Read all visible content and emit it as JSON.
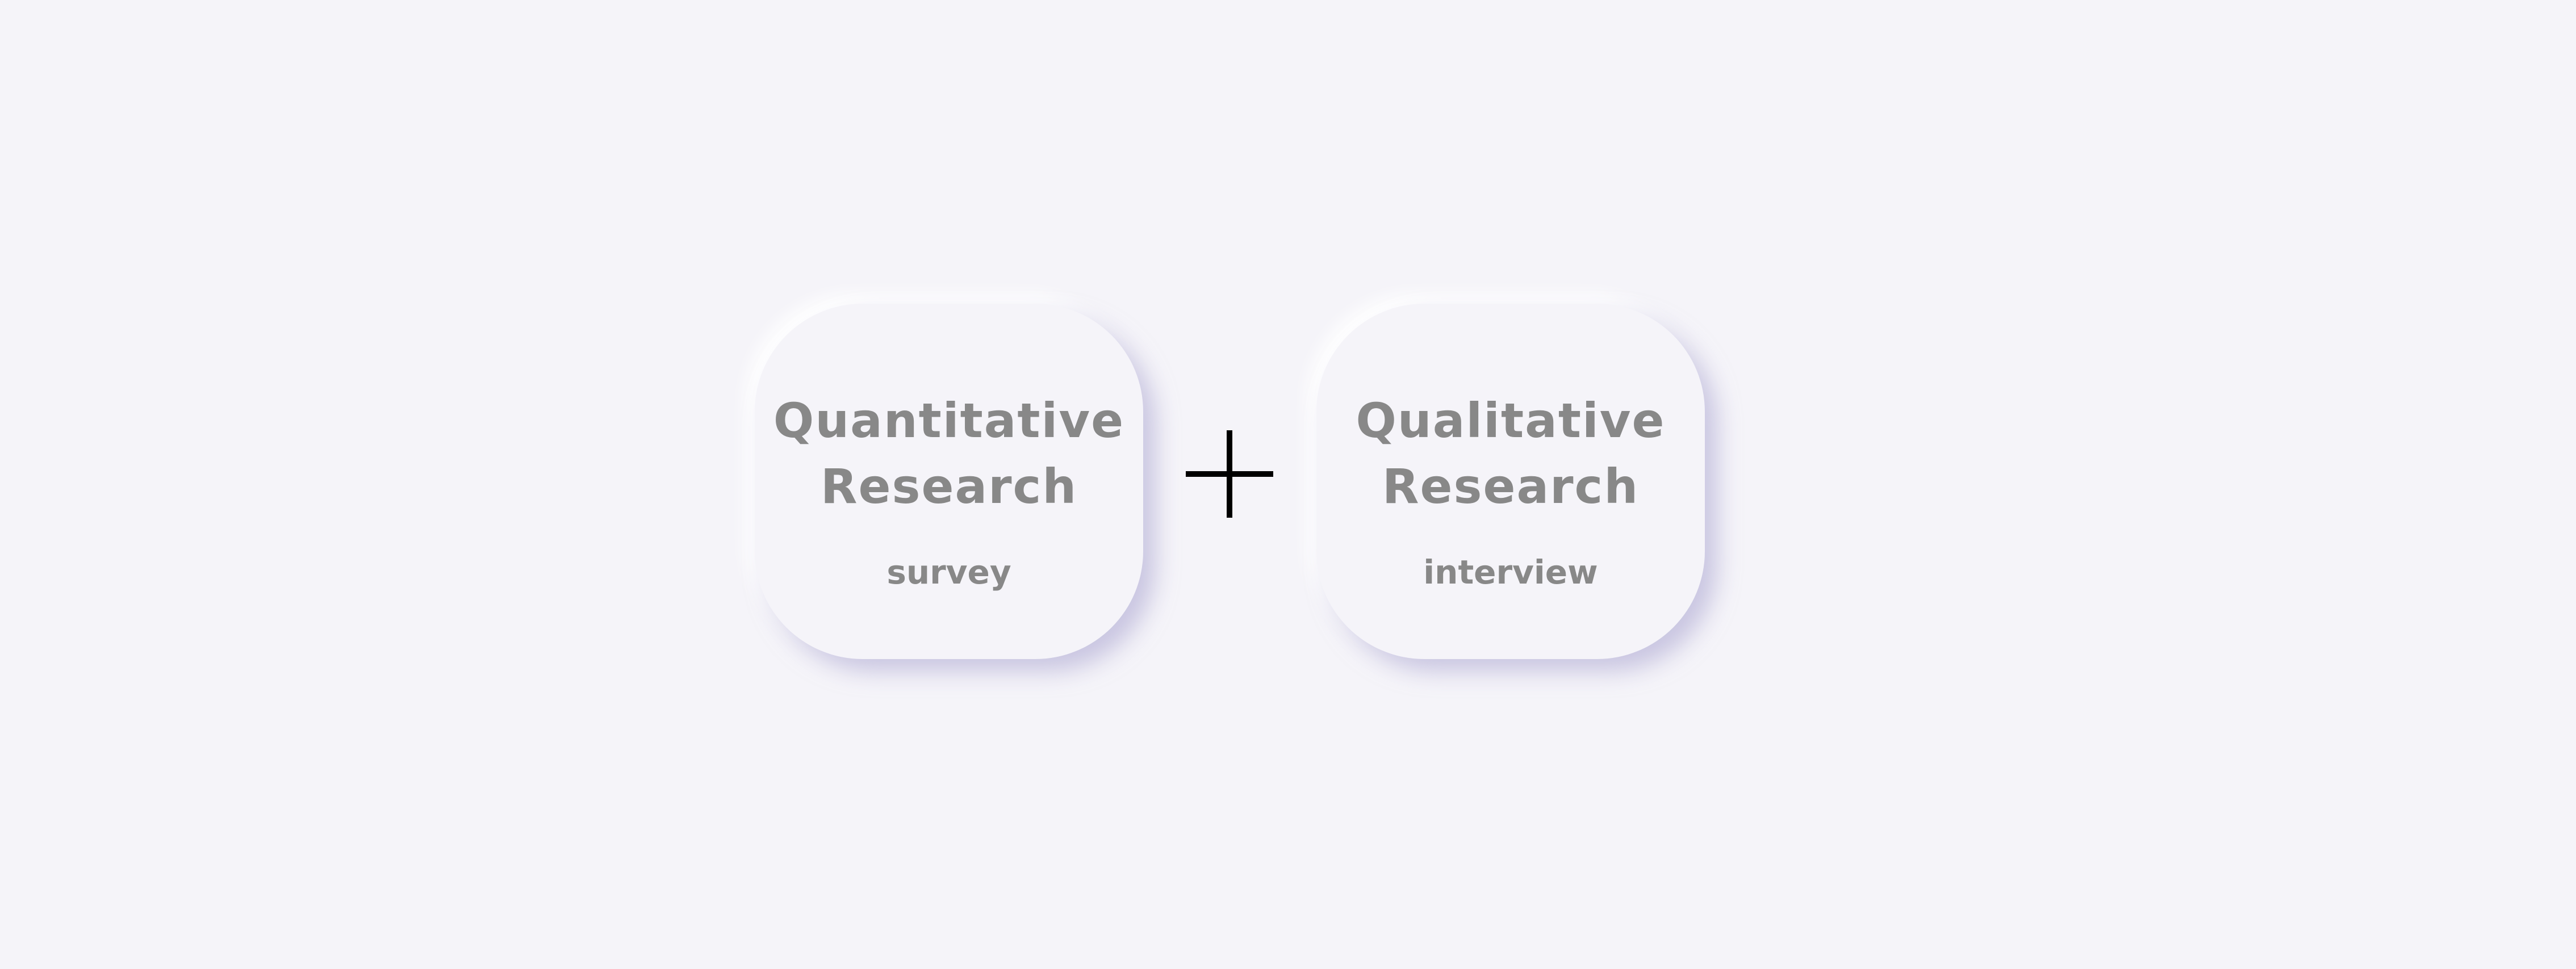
{
  "colors": {
    "background": "#f5f4f9",
    "card_text": "#888888",
    "plus_sign": "#000000"
  },
  "cards": [
    {
      "title_line1": "Quantitative",
      "title_line2": "Research",
      "subtitle": "survey"
    },
    {
      "title_line1": "Qualitative",
      "title_line2": "Research",
      "subtitle": "interview"
    }
  ],
  "operator_icon": "plus-icon"
}
